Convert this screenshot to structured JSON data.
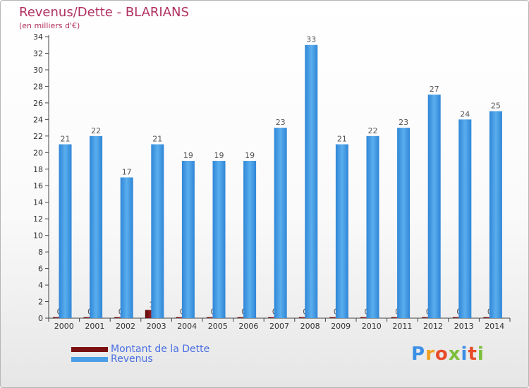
{
  "title": "Revenus/Dette - BLARIANS",
  "subtitle": "(en milliers d'€)",
  "colors": {
    "title": "#b03060",
    "dette": "#7a1010",
    "revenus": "#4a9fe6",
    "legend_text": "#4a6fe3",
    "axis_text": "#333333"
  },
  "legend": {
    "items": [
      {
        "label": "Montant de la Dette",
        "color": "#7a1010"
      },
      {
        "label": "Revenus",
        "color": "#4a9fe6"
      }
    ]
  },
  "logo": {
    "text": "Proxiti"
  },
  "chart_data": {
    "type": "bar",
    "categories": [
      "2000",
      "2001",
      "2002",
      "2003",
      "2004",
      "2005",
      "2006",
      "2007",
      "2008",
      "2009",
      "2010",
      "2011",
      "2012",
      "2013",
      "2014"
    ],
    "series": [
      {
        "name": "Montant de la Dette",
        "values": [
          0,
          0,
          0,
          1,
          0,
          0,
          0,
          0,
          0,
          0,
          0,
          0,
          0,
          0,
          0
        ]
      },
      {
        "name": "Revenus",
        "values": [
          21,
          22,
          17,
          21,
          19,
          19,
          19,
          23,
          33,
          21,
          22,
          23,
          27,
          24,
          25
        ]
      }
    ],
    "ylim": [
      0,
      34
    ],
    "yticks": [
      0,
      2,
      4,
      6,
      8,
      10,
      12,
      14,
      16,
      18,
      20,
      22,
      24,
      26,
      28,
      30,
      32,
      34
    ],
    "grid": false,
    "legend_position": "bottom-left"
  }
}
